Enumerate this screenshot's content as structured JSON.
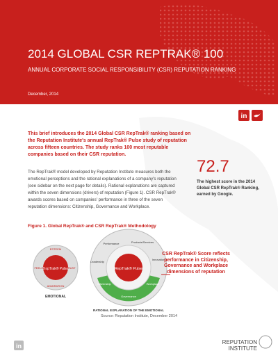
{
  "header": {
    "title": "2014 GLOBAL CSR REPTRAK® 100",
    "subtitle": "ANNUAL CORPORATE SOCIAL RESPONSIBILITY (CSR) REPUTATION RANKING",
    "date": "December, 2014"
  },
  "intro": "This brief introduces the 2014 Global CSR RepTrak® ranking based on the Reputation Institute's annual RepTrak® Pulse study of reputation across fifteen countries. The study ranks 100 most reputable companies based on their CSR reputation.",
  "body": "The RepTrak® model developed by Reputation Institute measures both the emotional perceptions and the rational explanations of a company's reputation (see sidebar on the next page for details). Rational explanations are captured within the seven dimensions (drivers) of reputation (Figure 1). CSR RepTrak® awards scores based on companies' performance in three of the seven reputation dimensions: Citizenship, Governance and Workplace.",
  "highlight": {
    "score": "72.7",
    "text": "The highest score in the 2014 Global CSR RepTrak® Ranking, earned by Google."
  },
  "figure": {
    "title": "Figure 1. Global RepTrak® and CSR RepTrak® Methodology",
    "pulse": "RepTrak® Pulse",
    "pulse_parts": [
      "ESTEEM",
      "FEELING",
      "TRUST",
      "ADMIRATION"
    ],
    "emotional": "EMOTIONAL",
    "dimensions": [
      "Performance",
      "Products/Services",
      "Innovation",
      "Workplace",
      "Governance",
      "Citizenship",
      "Leadership"
    ],
    "rational": "RATIONAL EXPLANATION OF THE EMOTIONAL",
    "callout": "CSR RepTrak® Score reflects performance in Citizenship, Governance and Workplace dimensions of reputation",
    "source": "Source: Reputation Institute, December 2014"
  },
  "footer": {
    "logo": "REPUTATION INSTITUTE"
  }
}
